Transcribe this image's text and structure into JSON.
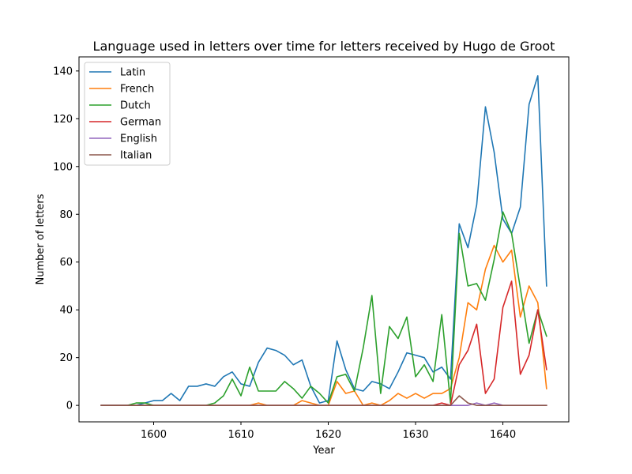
{
  "chart_data": {
    "type": "line",
    "title": "Language used in letters over time for letters received by Hugo de Groot",
    "xlabel": "Year",
    "ylabel": "Number of letters",
    "xlim": [
      1591.45,
      1647.55
    ],
    "ylim": [
      -6.9,
      145.9
    ],
    "xticks": [
      1600,
      1610,
      1620,
      1630,
      1640
    ],
    "yticks": [
      0,
      20,
      40,
      60,
      80,
      100,
      120,
      140
    ],
    "grid": false,
    "legend_position": "upper-left",
    "x": [
      1594,
      1595,
      1596,
      1597,
      1598,
      1599,
      1600,
      1601,
      1602,
      1603,
      1604,
      1605,
      1606,
      1607,
      1608,
      1609,
      1610,
      1611,
      1612,
      1613,
      1614,
      1615,
      1616,
      1617,
      1618,
      1619,
      1620,
      1621,
      1622,
      1623,
      1624,
      1625,
      1626,
      1627,
      1628,
      1629,
      1630,
      1631,
      1632,
      1633,
      1634,
      1635,
      1636,
      1637,
      1638,
      1639,
      1640,
      1641,
      1642,
      1643,
      1644,
      1645
    ],
    "series": [
      {
        "name": "Latin",
        "color": "#1f77b4",
        "values": [
          0,
          0,
          0,
          0,
          0,
          1,
          2,
          2,
          5,
          2,
          8,
          8,
          9,
          8,
          12,
          14,
          9,
          8,
          18,
          24,
          23,
          21,
          17,
          19,
          8,
          1,
          2,
          27,
          15,
          7,
          6,
          10,
          9,
          7,
          14,
          22,
          21,
          20,
          14,
          16,
          11,
          76,
          66,
          84,
          125,
          106,
          78,
          72,
          83,
          126,
          138,
          50
        ]
      },
      {
        "name": "French",
        "color": "#ff7f0e",
        "values": [
          0,
          0,
          0,
          0,
          0,
          0,
          0,
          0,
          0,
          0,
          0,
          0,
          0,
          0,
          0,
          0,
          0,
          0,
          1,
          0,
          0,
          0,
          0,
          2,
          1,
          0,
          0,
          10,
          5,
          6,
          0,
          1,
          0,
          2,
          5,
          3,
          5,
          3,
          5,
          5,
          7,
          20,
          43,
          40,
          57,
          67,
          60,
          65,
          37,
          50,
          43,
          7
        ]
      },
      {
        "name": "Dutch",
        "color": "#2ca02c",
        "values": [
          0,
          0,
          0,
          0,
          1,
          1,
          0,
          0,
          0,
          0,
          0,
          0,
          0,
          1,
          4,
          11,
          4,
          16,
          6,
          6,
          6,
          10,
          7,
          3,
          8,
          5,
          1,
          12,
          13,
          6,
          24,
          46,
          5,
          33,
          28,
          37,
          12,
          17,
          10,
          38,
          1,
          72,
          50,
          51,
          44,
          61,
          81,
          72,
          49,
          26,
          40,
          29
        ]
      },
      {
        "name": "German",
        "color": "#d62728",
        "values": [
          0,
          0,
          0,
          0,
          0,
          0,
          0,
          0,
          0,
          0,
          0,
          0,
          0,
          0,
          0,
          0,
          0,
          0,
          0,
          0,
          0,
          0,
          0,
          0,
          0,
          0,
          0,
          0,
          0,
          0,
          0,
          0,
          0,
          0,
          0,
          0,
          0,
          0,
          0,
          1,
          0,
          17,
          23,
          34,
          5,
          11,
          41,
          52,
          13,
          21,
          40,
          15
        ]
      },
      {
        "name": "English",
        "color": "#9467bd",
        "values": [
          0,
          0,
          0,
          0,
          0,
          0,
          0,
          0,
          0,
          0,
          0,
          0,
          0,
          0,
          0,
          0,
          0,
          0,
          0,
          0,
          0,
          0,
          0,
          0,
          0,
          0,
          0,
          0,
          0,
          0,
          0,
          0,
          0,
          0,
          0,
          0,
          0,
          0,
          0,
          0,
          0,
          0,
          0,
          1,
          0,
          1,
          0,
          0,
          0,
          0,
          0,
          0
        ]
      },
      {
        "name": "Italian",
        "color": "#8c564b",
        "values": [
          0,
          0,
          0,
          0,
          0,
          0,
          0,
          0,
          0,
          0,
          0,
          0,
          0,
          0,
          0,
          0,
          0,
          0,
          0,
          0,
          0,
          0,
          0,
          0,
          0,
          0,
          0,
          0,
          0,
          0,
          0,
          0,
          0,
          0,
          0,
          0,
          0,
          0,
          0,
          0,
          0,
          4,
          1,
          0,
          0,
          0,
          0,
          0,
          0,
          0,
          0,
          0
        ]
      }
    ]
  }
}
